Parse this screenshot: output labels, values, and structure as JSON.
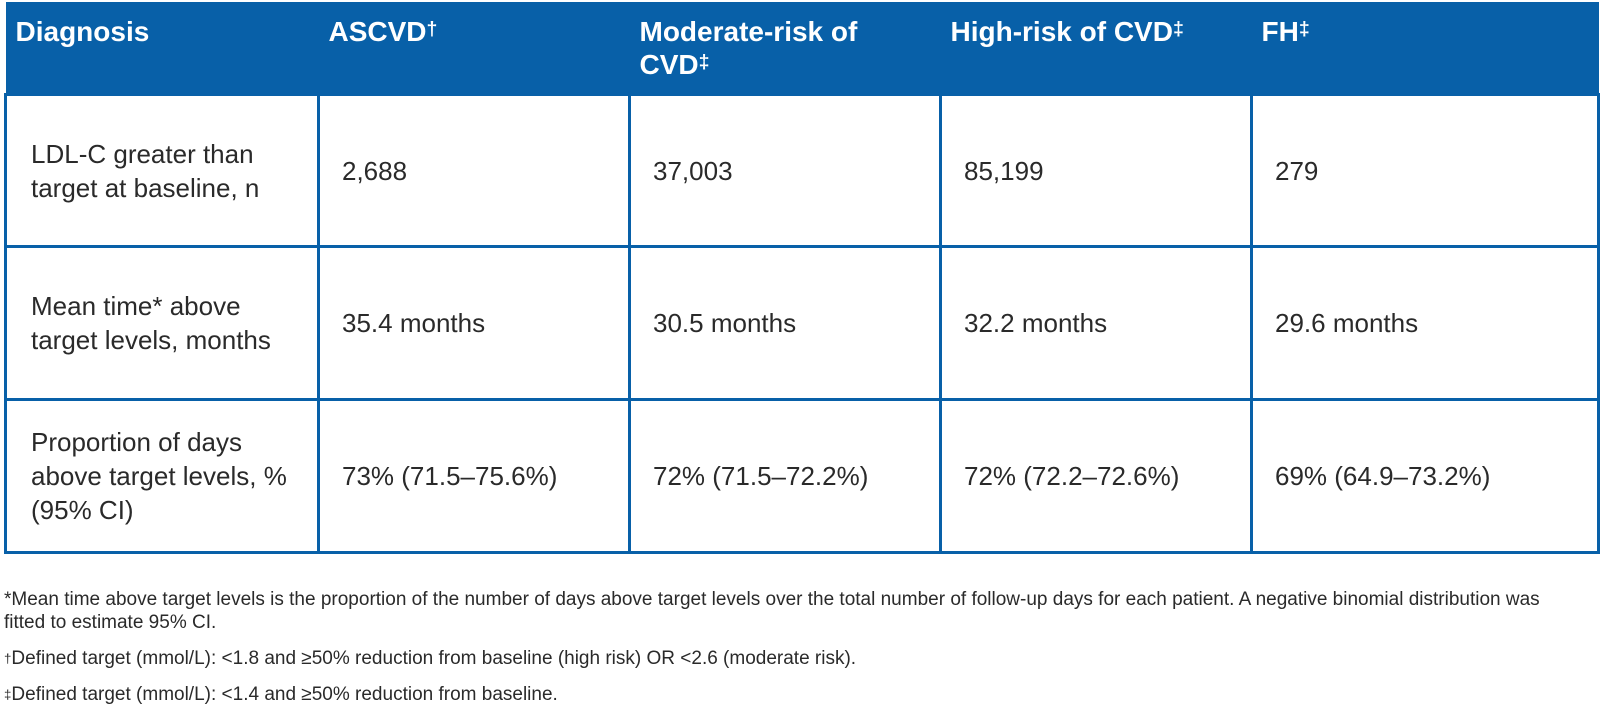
{
  "table": {
    "headers": [
      {
        "text": "Diagnosis",
        "mark": ""
      },
      {
        "text": "ASCVD",
        "mark": "†"
      },
      {
        "text": "Moderate-risk of CVD",
        "mark": "‡"
      },
      {
        "text": "High-risk of CVD",
        "mark": "‡"
      },
      {
        "text": "FH",
        "mark": "‡"
      }
    ],
    "rows": [
      {
        "label": "LDL-C greater than target at baseline, n",
        "values": [
          "2,688",
          "37,003",
          "85,199",
          "279"
        ]
      },
      {
        "label": "Mean time* above target levels, months",
        "values": [
          "35.4 months",
          "30.5 months",
          "32.2 months",
          "29.6 months"
        ]
      },
      {
        "label": "Proportion of days above target levels, % (95% CI)",
        "values": [
          "73% (71.5–75.6%)",
          "72% (71.5–72.2%)",
          "72% (72.2–72.6%)",
          "69% (64.9–73.2%)"
        ]
      }
    ]
  },
  "footnotes": [
    {
      "symbol": "*",
      "text": "Mean time above target levels is the proportion of the number of days above target levels over the total number of follow-up days for each patient. A negative binomial distribution was fitted to estimate 95% CI."
    },
    {
      "symbol": "†",
      "text": "Defined target (mmol/L): <1.8 and ≥50% reduction from baseline (high risk) OR <2.6 (moderate risk)."
    },
    {
      "symbol": "‡",
      "text": "Defined target (mmol/L): <1.4 and ≥50% reduction from baseline."
    }
  ],
  "colors": {
    "header_bg": "#0860a8",
    "border": "#0860a8",
    "header_text": "#ffffff"
  }
}
